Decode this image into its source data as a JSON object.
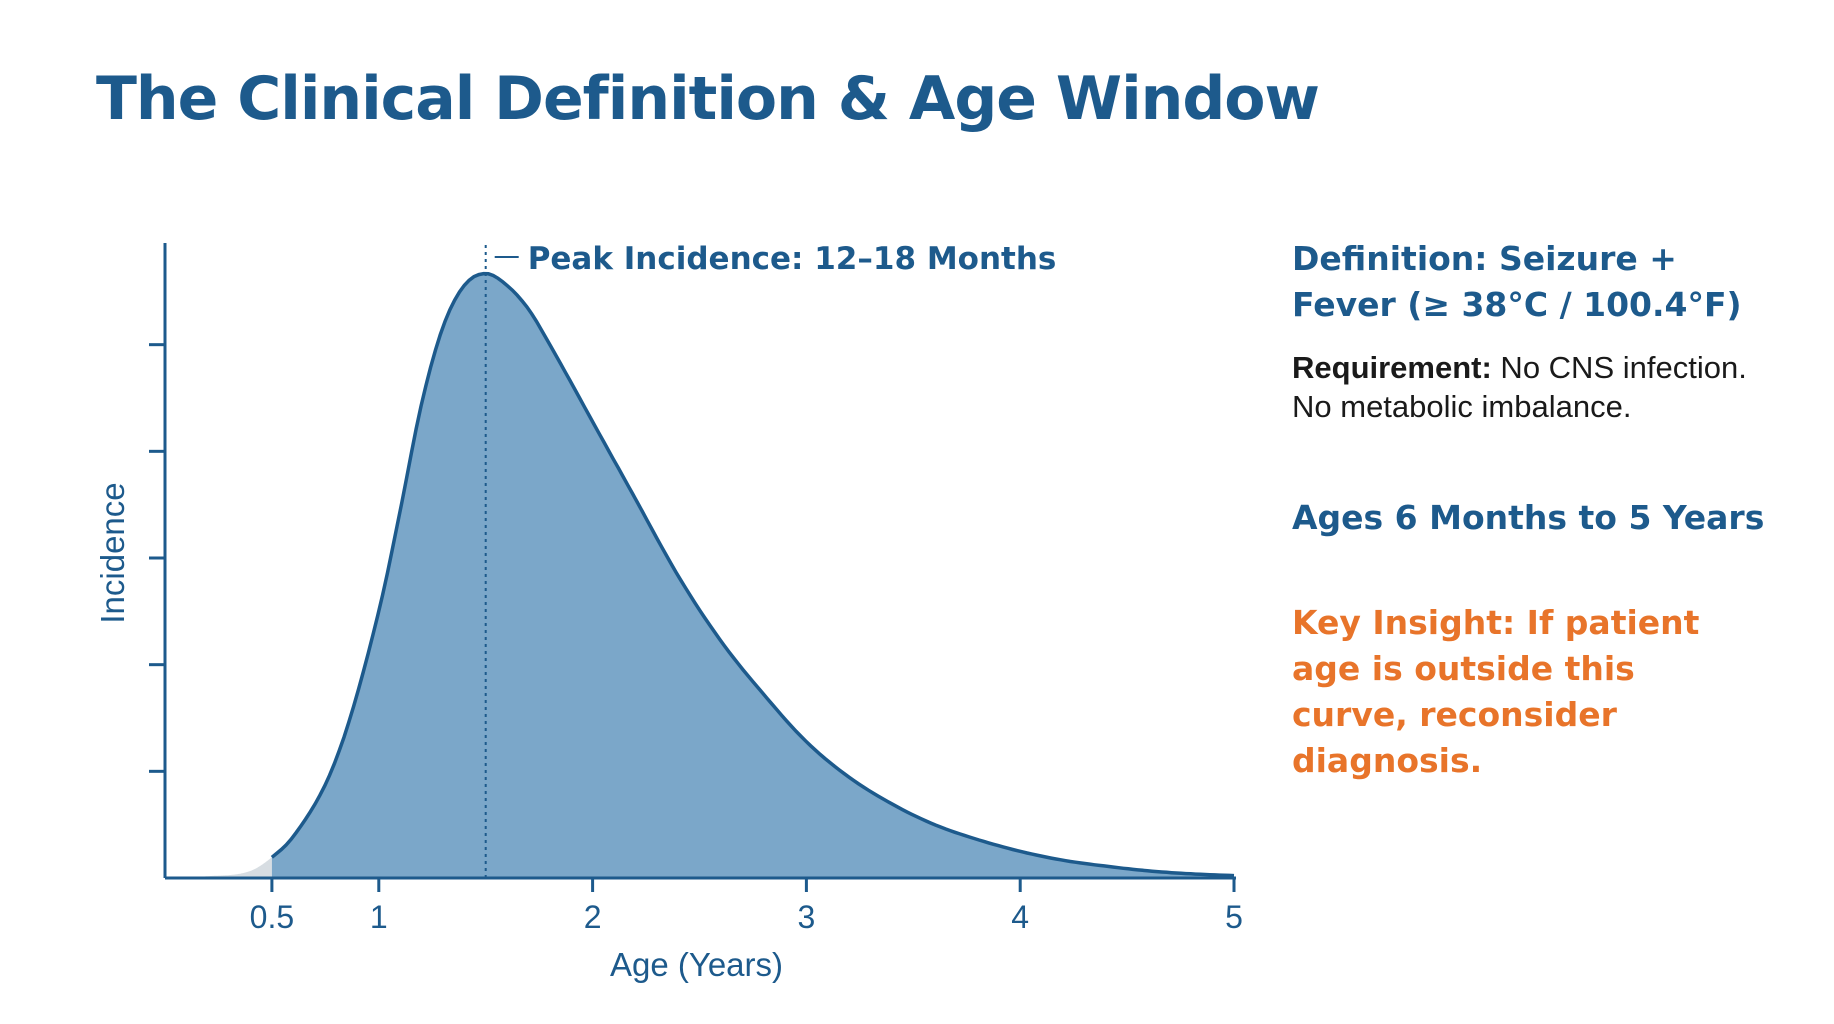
{
  "title": "The Clinical Definition & Age Window",
  "colors": {
    "title": "#1d5a8c",
    "axis": "#1d5a8c",
    "curve_stroke": "#1d5a8c",
    "curve_fill": "#7ba7c9",
    "tail_fill": "#d7dde2",
    "insight": "#e8742a",
    "body_text": "#1a1a1a"
  },
  "chart_data": {
    "type": "area",
    "title": "",
    "xlabel": "Age (Years)",
    "ylabel": "Incidence",
    "xlim": [
      0,
      5
    ],
    "ylim": [
      0,
      1.08
    ],
    "xticks": [
      0.5,
      1,
      2,
      3,
      4,
      5
    ],
    "xtick_labels": [
      "0.5",
      "1",
      "2",
      "3",
      "4",
      "5"
    ],
    "yticks": [
      0.18,
      0.36,
      0.54,
      0.72,
      0.9
    ],
    "y_tick_labels_shown": false,
    "grid": false,
    "shaded_range": [
      0.5,
      5
    ],
    "x": [
      0,
      0.2,
      0.4,
      0.5,
      0.6,
      0.8,
      1.0,
      1.1,
      1.2,
      1.3,
      1.4,
      1.5,
      1.6,
      1.7,
      1.8,
      2.0,
      2.2,
      2.4,
      2.6,
      2.8,
      3.0,
      3.2,
      3.4,
      3.6,
      3.8,
      4.0,
      4.2,
      4.4,
      4.6,
      4.8,
      5.0
    ],
    "y": [
      0,
      0.003,
      0.012,
      0.035,
      0.07,
      0.2,
      0.45,
      0.62,
      0.8,
      0.93,
      1.0,
      1.02,
      1.0,
      0.96,
      0.9,
      0.77,
      0.64,
      0.51,
      0.4,
      0.31,
      0.23,
      0.17,
      0.125,
      0.09,
      0.065,
      0.045,
      0.03,
      0.02,
      0.012,
      0.007,
      0.004
    ],
    "annotations": [
      {
        "x": 1.5,
        "text": "Peak Incidence: 12–18 Months"
      }
    ]
  },
  "side_panel": {
    "definition_heading": "Definition: Seizure + Fever (≥ 38°C / 100.4°F)",
    "requirement_label": "Requirement:",
    "requirement_text": " No CNS infection. No metabolic imbalance.",
    "age_window": "Ages 6 Months to 5 Years",
    "key_insight": "Key Insight: If patient age is outside this curve, reconsider diagnosis."
  }
}
